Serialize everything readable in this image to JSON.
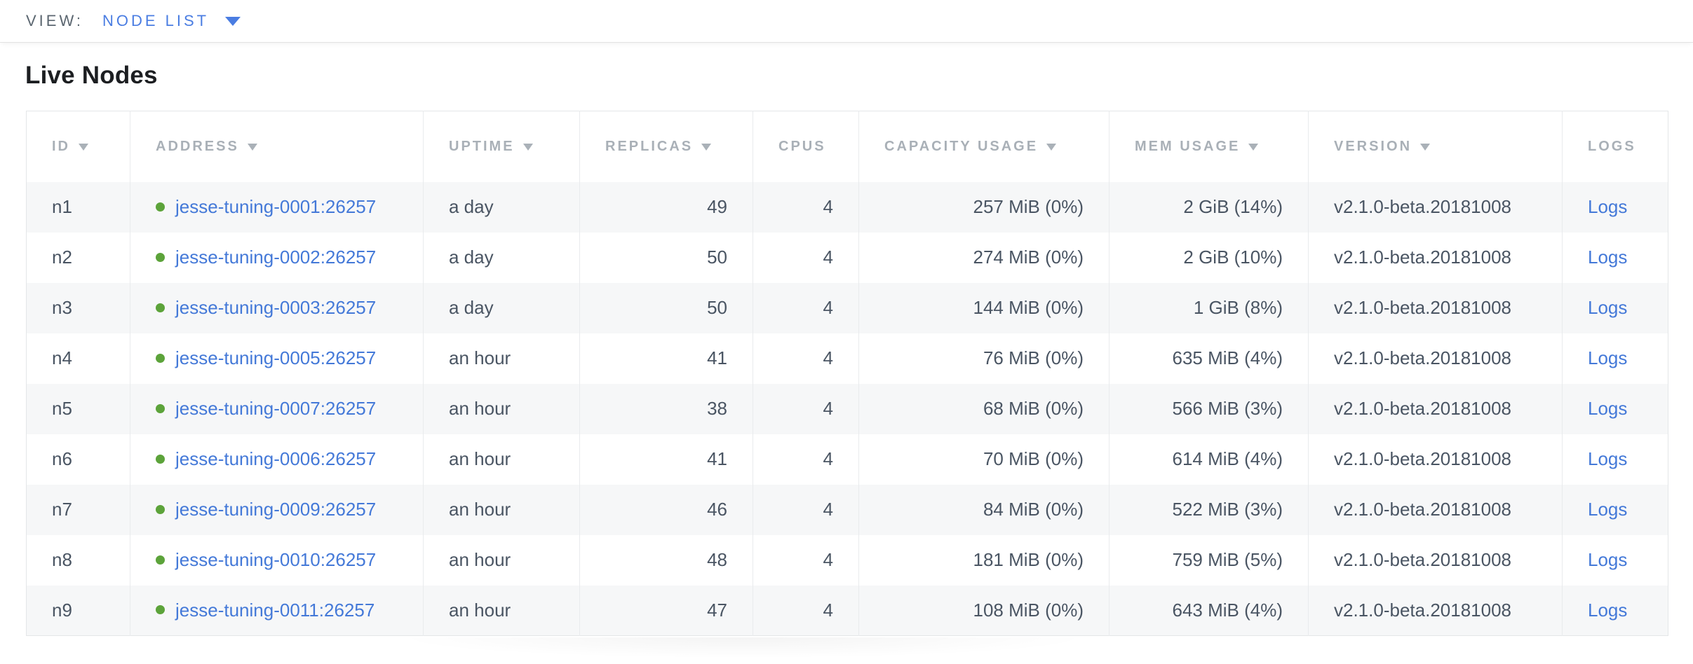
{
  "view_bar": {
    "label": "VIEW:",
    "selected": "NODE LIST"
  },
  "page": {
    "title": "Live Nodes"
  },
  "table": {
    "columns": [
      {
        "key": "id",
        "label": "ID",
        "sortable": true,
        "align": "left"
      },
      {
        "key": "address",
        "label": "ADDRESS",
        "sortable": true,
        "align": "left"
      },
      {
        "key": "uptime",
        "label": "UPTIME",
        "sortable": true,
        "align": "left"
      },
      {
        "key": "replicas",
        "label": "REPLICAS",
        "sortable": true,
        "align": "right"
      },
      {
        "key": "cpus",
        "label": "CPUS",
        "sortable": false,
        "align": "right"
      },
      {
        "key": "capacity",
        "label": "CAPACITY USAGE",
        "sortable": true,
        "align": "right"
      },
      {
        "key": "mem",
        "label": "MEM USAGE",
        "sortable": true,
        "align": "right"
      },
      {
        "key": "version",
        "label": "VERSION",
        "sortable": true,
        "align": "left"
      },
      {
        "key": "logs",
        "label": "LOGS",
        "sortable": false,
        "align": "left"
      }
    ],
    "rows": [
      {
        "id": "n1",
        "address": "jesse-tuning-0001:26257",
        "uptime": "a day",
        "replicas": "49",
        "cpus": "4",
        "capacity": "257 MiB (0%)",
        "mem": "2 GiB (14%)",
        "version": "v2.1.0-beta.20181008",
        "logs": "Logs"
      },
      {
        "id": "n2",
        "address": "jesse-tuning-0002:26257",
        "uptime": "a day",
        "replicas": "50",
        "cpus": "4",
        "capacity": "274 MiB (0%)",
        "mem": "2 GiB (10%)",
        "version": "v2.1.0-beta.20181008",
        "logs": "Logs"
      },
      {
        "id": "n3",
        "address": "jesse-tuning-0003:26257",
        "uptime": "a day",
        "replicas": "50",
        "cpus": "4",
        "capacity": "144 MiB (0%)",
        "mem": "1 GiB (8%)",
        "version": "v2.1.0-beta.20181008",
        "logs": "Logs"
      },
      {
        "id": "n4",
        "address": "jesse-tuning-0005:26257",
        "uptime": "an hour",
        "replicas": "41",
        "cpus": "4",
        "capacity": "76 MiB (0%)",
        "mem": "635 MiB (4%)",
        "version": "v2.1.0-beta.20181008",
        "logs": "Logs"
      },
      {
        "id": "n5",
        "address": "jesse-tuning-0007:26257",
        "uptime": "an hour",
        "replicas": "38",
        "cpus": "4",
        "capacity": "68 MiB (0%)",
        "mem": "566 MiB (3%)",
        "version": "v2.1.0-beta.20181008",
        "logs": "Logs"
      },
      {
        "id": "n6",
        "address": "jesse-tuning-0006:26257",
        "uptime": "an hour",
        "replicas": "41",
        "cpus": "4",
        "capacity": "70 MiB (0%)",
        "mem": "614 MiB (4%)",
        "version": "v2.1.0-beta.20181008",
        "logs": "Logs"
      },
      {
        "id": "n7",
        "address": "jesse-tuning-0009:26257",
        "uptime": "an hour",
        "replicas": "46",
        "cpus": "4",
        "capacity": "84 MiB (0%)",
        "mem": "522 MiB (3%)",
        "version": "v2.1.0-beta.20181008",
        "logs": "Logs"
      },
      {
        "id": "n8",
        "address": "jesse-tuning-0010:26257",
        "uptime": "an hour",
        "replicas": "48",
        "cpus": "4",
        "capacity": "181 MiB (0%)",
        "mem": "759 MiB (5%)",
        "version": "v2.1.0-beta.20181008",
        "logs": "Logs"
      },
      {
        "id": "n9",
        "address": "jesse-tuning-0011:26257",
        "uptime": "an hour",
        "replicas": "47",
        "cpus": "4",
        "capacity": "108 MiB (0%)",
        "mem": "643 MiB (4%)",
        "version": "v2.1.0-beta.20181008",
        "logs": "Logs"
      }
    ]
  },
  "icons": {
    "dropdown_caret": "chevron-down-icon",
    "sort_desc": "sort-desc-icon",
    "node_status": "node-status-live-icon"
  },
  "colors": {
    "accent_blue": "#4a7de2",
    "link_blue": "#4479d8",
    "live_green": "#5ca33a",
    "header_gray": "#a9b0b7",
    "cell_text": "#4a5563",
    "row_alt_bg": "#f6f7f8",
    "table_border": "#e4e6e8"
  }
}
